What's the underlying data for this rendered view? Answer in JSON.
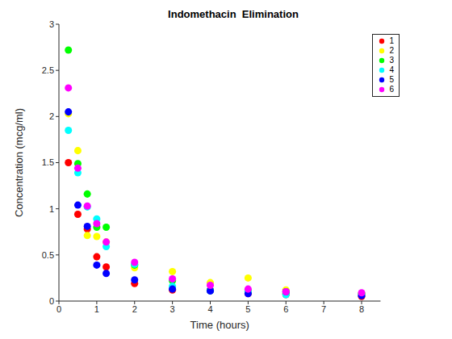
{
  "chart_data": {
    "type": "scatter",
    "title": "Indomethacin  Elimination",
    "x_label": "Time (hours)",
    "y_label": "Concentration (mcg/ml)",
    "x": [
      0.25,
      0.5,
      0.75,
      1,
      1.25,
      2,
      3,
      4,
      5,
      6,
      8
    ],
    "series": [
      {
        "name": "1",
        "color": "#ff0000",
        "values": [
          1.5,
          0.94,
          0.78,
          0.48,
          0.37,
          0.19,
          0.12,
          0.11,
          0.08,
          0.07,
          0.05
        ]
      },
      {
        "name": "2",
        "color": "#ffff00",
        "values": [
          2.03,
          1.63,
          0.71,
          0.7,
          0.64,
          0.36,
          0.32,
          0.2,
          0.25,
          0.12,
          0.08
        ]
      },
      {
        "name": "3",
        "color": "#00ff00",
        "values": [
          2.72,
          1.49,
          1.16,
          0.8,
          0.8,
          0.39,
          0.22,
          0.12,
          0.11,
          0.08,
          0.08
        ]
      },
      {
        "name": "4",
        "color": "#00ffff",
        "values": [
          1.85,
          1.39,
          1.02,
          0.89,
          0.59,
          0.4,
          0.16,
          0.11,
          0.1,
          0.07,
          0.07
        ]
      },
      {
        "name": "5",
        "color": "#0000ff",
        "values": [
          2.05,
          1.04,
          0.81,
          0.39,
          0.3,
          0.23,
          0.13,
          0.11,
          0.08,
          0.1,
          0.06
        ]
      },
      {
        "name": "6",
        "color": "#ff00ff",
        "values": [
          2.31,
          1.44,
          1.03,
          0.84,
          0.64,
          0.42,
          0.24,
          0.17,
          0.13,
          0.1,
          0.09
        ]
      }
    ],
    "marker": "circle",
    "xlim": [
      0,
      8.5
    ],
    "xticks": [
      0,
      1,
      2,
      3,
      4,
      5,
      6,
      7,
      8
    ],
    "ylim": [
      0,
      3
    ],
    "yticks": [
      0,
      0.5,
      1,
      1.5,
      2,
      2.5,
      3
    ],
    "grid": false,
    "legend": "upper right"
  }
}
